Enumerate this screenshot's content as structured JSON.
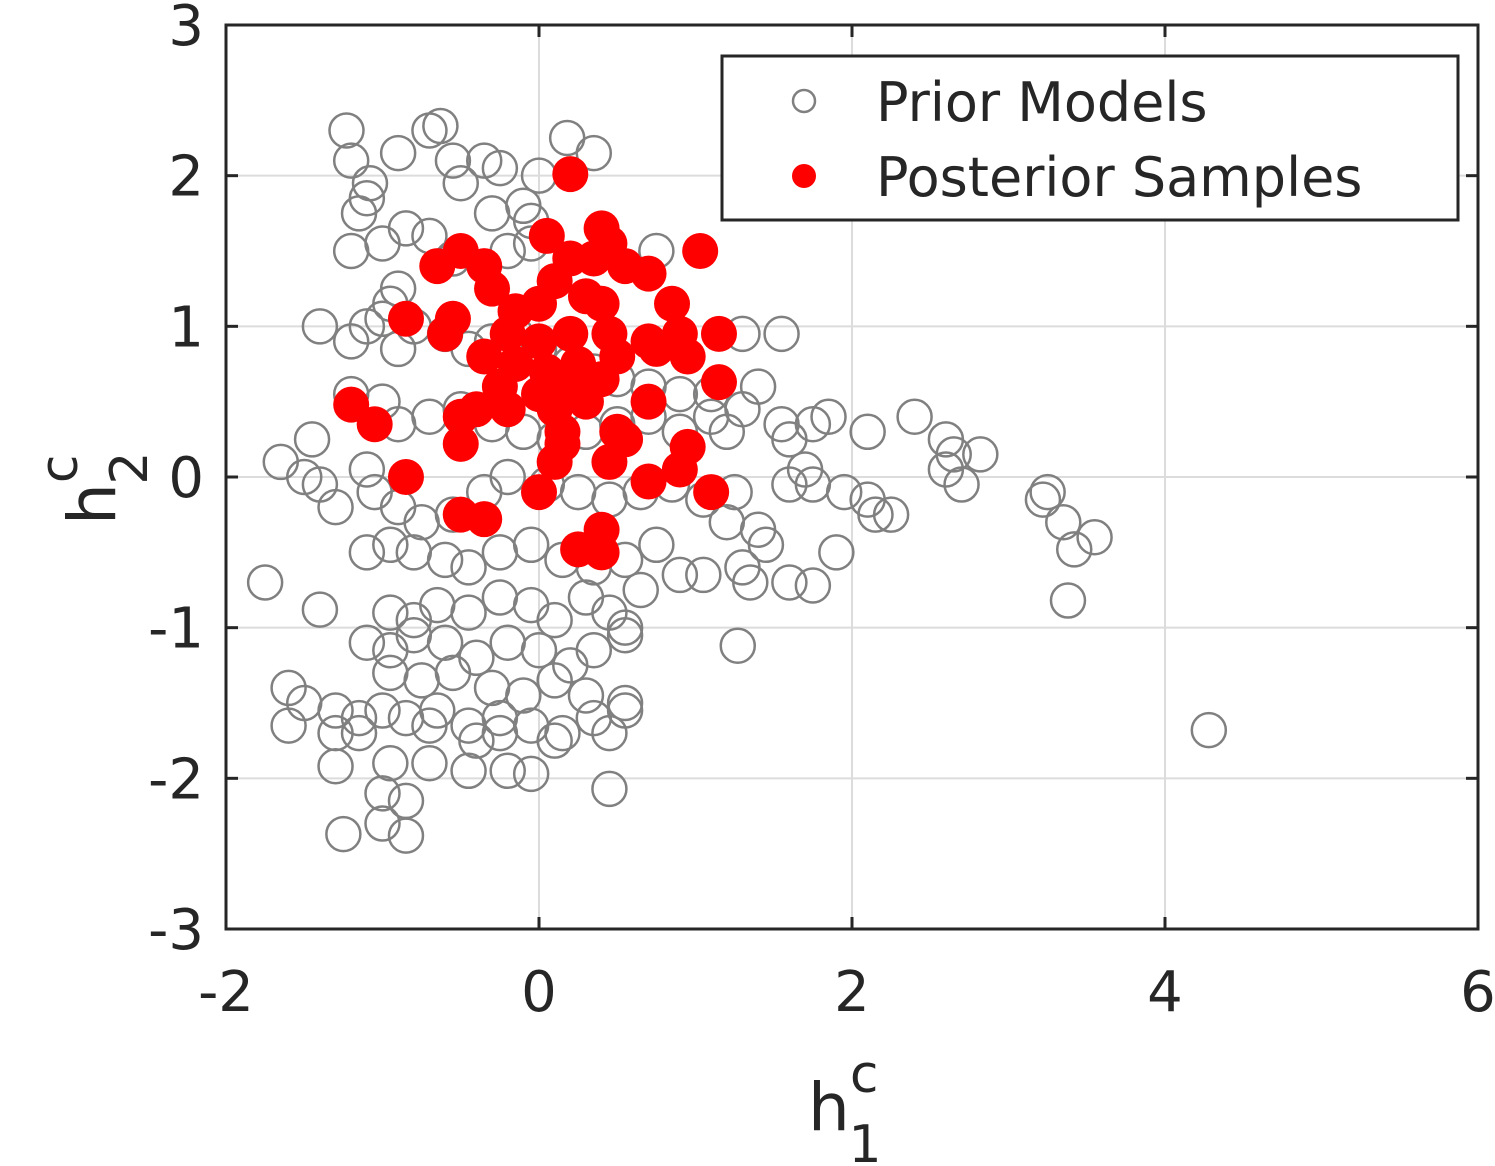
{
  "chart_data": {
    "type": "scatter",
    "xlabel": {
      "base": "h",
      "sup": "c",
      "sub": "1"
    },
    "ylabel": {
      "base": "h",
      "sup": "c",
      "sub": "2"
    },
    "xlim": [
      -2,
      6
    ],
    "ylim": [
      -3,
      3
    ],
    "xticks": [
      "-2",
      "0",
      "2",
      "4",
      "6"
    ],
    "yticks": [
      "-3",
      "-2",
      "-1",
      "0",
      "1",
      "2",
      "3"
    ],
    "grid": true,
    "legend": {
      "placement": "top-right",
      "entries": [
        "Prior Models",
        "Posterior Samples"
      ]
    },
    "series": [
      {
        "name": "Prior Models",
        "marker": "open-circle",
        "color": "#808080",
        "points": [
          [
            -1.23,
            2.3
          ],
          [
            -1.2,
            2.1
          ],
          [
            -1.08,
            1.95
          ],
          [
            -0.9,
            2.15
          ],
          [
            -0.7,
            2.3
          ],
          [
            -0.63,
            2.33
          ],
          [
            -0.55,
            2.1
          ],
          [
            -0.5,
            1.95
          ],
          [
            -0.35,
            2.1
          ],
          [
            -0.25,
            2.05
          ],
          [
            0.18,
            2.25
          ],
          [
            0.35,
            2.15
          ],
          [
            0.0,
            2.0
          ],
          [
            -0.1,
            1.8
          ],
          [
            -0.3,
            1.75
          ],
          [
            -0.05,
            1.7
          ],
          [
            -1.15,
            1.75
          ],
          [
            -1.1,
            1.85
          ],
          [
            -1.0,
            1.55
          ],
          [
            -1.2,
            1.5
          ],
          [
            -0.85,
            1.65
          ],
          [
            -0.7,
            1.6
          ],
          [
            -0.55,
            1.45
          ],
          [
            -0.2,
            1.5
          ],
          [
            -0.05,
            1.55
          ],
          [
            0.75,
            1.5
          ],
          [
            -0.9,
            1.25
          ],
          [
            -0.95,
            1.15
          ],
          [
            -1.0,
            1.05
          ],
          [
            -1.1,
            1.0
          ],
          [
            -1.4,
            1.0
          ],
          [
            -1.2,
            0.9
          ],
          [
            -0.9,
            0.85
          ],
          [
            -0.8,
            1.0
          ],
          [
            -0.6,
            0.95
          ],
          [
            -0.45,
            0.85
          ],
          [
            -0.3,
            0.9
          ],
          [
            -0.15,
            0.95
          ],
          [
            0.0,
            0.85
          ],
          [
            0.2,
            0.75
          ],
          [
            0.35,
            0.7
          ],
          [
            0.5,
            0.65
          ],
          [
            0.7,
            0.6
          ],
          [
            0.9,
            0.55
          ],
          [
            1.1,
            0.55
          ],
          [
            1.3,
            0.95
          ],
          [
            1.55,
            0.95
          ],
          [
            1.4,
            0.6
          ],
          [
            1.3,
            0.45
          ],
          [
            1.1,
            0.4
          ],
          [
            -1.2,
            0.55
          ],
          [
            -1.0,
            0.5
          ],
          [
            -0.9,
            0.35
          ],
          [
            -0.7,
            0.4
          ],
          [
            -0.5,
            0.45
          ],
          [
            -0.3,
            0.35
          ],
          [
            -0.1,
            0.3
          ],
          [
            0.1,
            0.25
          ],
          [
            0.3,
            0.3
          ],
          [
            0.5,
            0.35
          ],
          [
            0.7,
            0.4
          ],
          [
            0.9,
            0.3
          ],
          [
            1.2,
            0.3
          ],
          [
            1.55,
            0.35
          ],
          [
            1.6,
            0.25
          ],
          [
            1.75,
            0.35
          ],
          [
            1.85,
            0.4
          ],
          [
            2.1,
            0.3
          ],
          [
            2.4,
            0.4
          ],
          [
            2.6,
            0.25
          ],
          [
            2.65,
            0.15
          ],
          [
            2.82,
            0.15
          ],
          [
            2.6,
            0.05
          ],
          [
            2.7,
            -0.05
          ],
          [
            -1.45,
            0.25
          ],
          [
            -1.65,
            0.1
          ],
          [
            -1.5,
            0.0
          ],
          [
            -1.4,
            -0.05
          ],
          [
            -1.3,
            -0.2
          ],
          [
            -1.1,
            0.05
          ],
          [
            -1.05,
            -0.1
          ],
          [
            -0.9,
            -0.2
          ],
          [
            -0.75,
            -0.3
          ],
          [
            -0.55,
            -0.25
          ],
          [
            -0.35,
            -0.1
          ],
          [
            -0.2,
            0.0
          ],
          [
            0.05,
            -0.05
          ],
          [
            0.25,
            -0.1
          ],
          [
            0.45,
            -0.15
          ],
          [
            0.65,
            -0.1
          ],
          [
            0.85,
            -0.05
          ],
          [
            1.05,
            -0.15
          ],
          [
            1.25,
            -0.1
          ],
          [
            1.4,
            -0.35
          ],
          [
            1.6,
            -0.05
          ],
          [
            1.7,
            0.05
          ],
          [
            1.75,
            -0.05
          ],
          [
            1.95,
            -0.1
          ],
          [
            2.1,
            -0.15
          ],
          [
            2.15,
            -0.25
          ],
          [
            2.25,
            -0.25
          ],
          [
            1.9,
            -0.5
          ],
          [
            1.45,
            -0.45
          ],
          [
            1.2,
            -0.3
          ],
          [
            -1.1,
            -0.5
          ],
          [
            -0.95,
            -0.45
          ],
          [
            -0.8,
            -0.5
          ],
          [
            -0.6,
            -0.55
          ],
          [
            -0.45,
            -0.6
          ],
          [
            -0.25,
            -0.5
          ],
          [
            -0.05,
            -0.45
          ],
          [
            0.15,
            -0.55
          ],
          [
            0.35,
            -0.6
          ],
          [
            0.55,
            -0.55
          ],
          [
            0.75,
            -0.45
          ],
          [
            0.9,
            -0.65
          ],
          [
            1.05,
            -0.65
          ],
          [
            1.3,
            -0.6
          ],
          [
            1.35,
            -0.7
          ],
          [
            1.6,
            -0.7
          ],
          [
            1.75,
            -0.72
          ],
          [
            3.25,
            -0.1
          ],
          [
            3.22,
            -0.15
          ],
          [
            3.35,
            -0.3
          ],
          [
            3.42,
            -0.48
          ],
          [
            3.55,
            -0.4
          ],
          [
            3.38,
            -0.82
          ],
          [
            -1.75,
            -0.7
          ],
          [
            -1.4,
            -0.88
          ],
          [
            -0.95,
            -0.9
          ],
          [
            -0.8,
            -0.95
          ],
          [
            -0.65,
            -0.85
          ],
          [
            -0.45,
            -0.9
          ],
          [
            -0.25,
            -0.8
          ],
          [
            -0.05,
            -0.85
          ],
          [
            0.1,
            -0.95
          ],
          [
            0.3,
            -0.8
          ],
          [
            0.45,
            -0.9
          ],
          [
            0.55,
            -1.0
          ],
          [
            0.65,
            -0.75
          ],
          [
            1.27,
            -1.12
          ],
          [
            -1.1,
            -1.1
          ],
          [
            -0.95,
            -1.15
          ],
          [
            -0.8,
            -1.05
          ],
          [
            -0.6,
            -1.1
          ],
          [
            -0.4,
            -1.2
          ],
          [
            -0.2,
            -1.1
          ],
          [
            0.0,
            -1.15
          ],
          [
            0.2,
            -1.25
          ],
          [
            0.35,
            -1.15
          ],
          [
            0.55,
            -1.05
          ],
          [
            -0.95,
            -1.3
          ],
          [
            -0.75,
            -1.35
          ],
          [
            -0.55,
            -1.3
          ],
          [
            -0.3,
            -1.4
          ],
          [
            -0.1,
            -1.45
          ],
          [
            0.1,
            -1.35
          ],
          [
            0.3,
            -1.45
          ],
          [
            0.55,
            -1.5
          ],
          [
            -1.6,
            -1.4
          ],
          [
            -1.5,
            -1.5
          ],
          [
            -1.3,
            -1.55
          ],
          [
            -1.15,
            -1.6
          ],
          [
            -1.0,
            -1.55
          ],
          [
            -0.85,
            -1.6
          ],
          [
            -0.65,
            -1.55
          ],
          [
            -0.45,
            -1.65
          ],
          [
            -0.25,
            -1.6
          ],
          [
            -0.05,
            -1.65
          ],
          [
            0.15,
            -1.7
          ],
          [
            0.35,
            -1.6
          ],
          [
            0.55,
            -1.55
          ],
          [
            -1.6,
            -1.65
          ],
          [
            -1.3,
            -1.7
          ],
          [
            -1.15,
            -1.7
          ],
          [
            -0.7,
            -1.65
          ],
          [
            -0.4,
            -1.75
          ],
          [
            -0.25,
            -1.7
          ],
          [
            0.1,
            -1.75
          ],
          [
            0.45,
            -1.7
          ],
          [
            4.28,
            -1.68
          ],
          [
            -1.3,
            -1.92
          ],
          [
            -0.95,
            -1.9
          ],
          [
            -0.7,
            -1.9
          ],
          [
            -0.45,
            -1.95
          ],
          [
            -0.2,
            -1.95
          ],
          [
            -0.05,
            -1.97
          ],
          [
            0.45,
            -2.07
          ],
          [
            -1.0,
            -2.1
          ],
          [
            -0.85,
            -2.15
          ],
          [
            -1.0,
            -2.3
          ],
          [
            -1.25,
            -2.37
          ],
          [
            -0.85,
            -2.38
          ]
        ]
      },
      {
        "name": "Posterior Samples",
        "marker": "filled-circle",
        "color": "#ff0000",
        "points": [
          [
            0.2,
            2.01
          ],
          [
            0.05,
            1.6
          ],
          [
            0.4,
            1.65
          ],
          [
            0.45,
            1.55
          ],
          [
            1.03,
            1.5
          ],
          [
            -0.5,
            1.5
          ],
          [
            -0.65,
            1.4
          ],
          [
            0.2,
            1.45
          ],
          [
            0.35,
            1.45
          ],
          [
            0.55,
            1.4
          ],
          [
            0.7,
            1.35
          ],
          [
            -0.35,
            1.4
          ],
          [
            -0.3,
            1.25
          ],
          [
            0.1,
            1.3
          ],
          [
            0.3,
            1.2
          ],
          [
            -0.15,
            1.1
          ],
          [
            0.0,
            1.15
          ],
          [
            0.4,
            1.15
          ],
          [
            0.85,
            1.15
          ],
          [
            -0.85,
            1.05
          ],
          [
            -0.55,
            1.05
          ],
          [
            -0.6,
            0.95
          ],
          [
            -0.2,
            0.95
          ],
          [
            0.0,
            0.9
          ],
          [
            0.2,
            0.95
          ],
          [
            0.45,
            0.95
          ],
          [
            0.7,
            0.9
          ],
          [
            0.9,
            0.95
          ],
          [
            1.15,
            0.95
          ],
          [
            -0.35,
            0.8
          ],
          [
            -0.15,
            0.75
          ],
          [
            0.05,
            0.7
          ],
          [
            0.25,
            0.75
          ],
          [
            0.5,
            0.8
          ],
          [
            0.75,
            0.85
          ],
          [
            0.95,
            0.8
          ],
          [
            -0.25,
            0.6
          ],
          [
            0.0,
            0.55
          ],
          [
            0.2,
            0.6
          ],
          [
            0.4,
            0.65
          ],
          [
            1.15,
            0.63
          ],
          [
            -1.2,
            0.48
          ],
          [
            -0.4,
            0.45
          ],
          [
            0.1,
            0.45
          ],
          [
            0.3,
            0.5
          ],
          [
            0.7,
            0.5
          ],
          [
            -1.05,
            0.35
          ],
          [
            -0.5,
            0.4
          ],
          [
            -0.2,
            0.45
          ],
          [
            0.15,
            0.3
          ],
          [
            0.5,
            0.3
          ],
          [
            -0.5,
            0.22
          ],
          [
            0.15,
            0.22
          ],
          [
            0.55,
            0.25
          ],
          [
            0.95,
            0.2
          ],
          [
            0.1,
            0.1
          ],
          [
            0.45,
            0.1
          ],
          [
            0.9,
            0.05
          ],
          [
            -0.85,
            0.0
          ],
          [
            0.7,
            -0.03
          ],
          [
            1.1,
            -0.1
          ],
          [
            0.0,
            -0.1
          ],
          [
            -0.5,
            -0.25
          ],
          [
            -0.35,
            -0.28
          ],
          [
            0.4,
            -0.35
          ],
          [
            0.25,
            -0.48
          ],
          [
            0.4,
            -0.5
          ]
        ]
      }
    ]
  }
}
